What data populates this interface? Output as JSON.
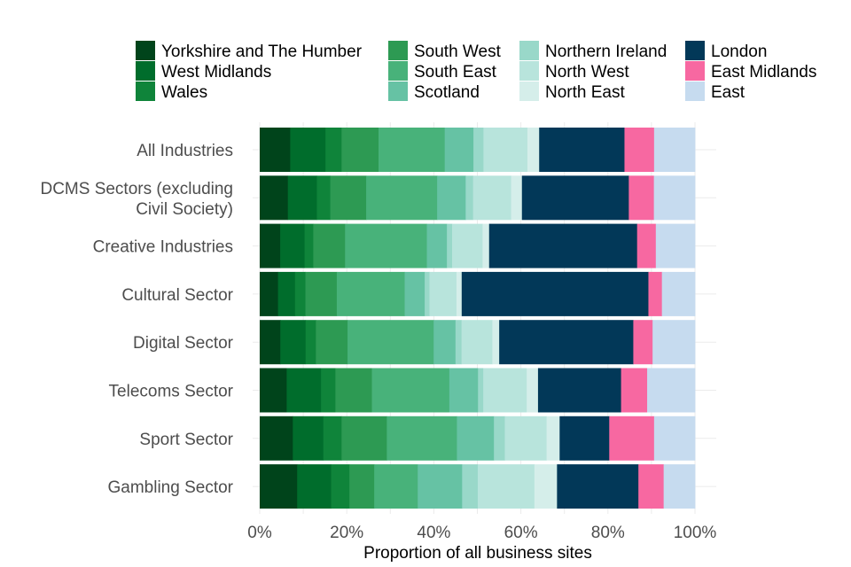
{
  "chart_data": {
    "type": "bar",
    "orientation": "horizontal",
    "stacked": true,
    "xlabel": "Proportion of all business sites",
    "xlim": [
      0,
      100
    ],
    "x_ticks": [
      "0%",
      "20%",
      "40%",
      "60%",
      "80%",
      "100%"
    ],
    "legend_position": "top",
    "categories": [
      "All Industries",
      "DCMS Sectors (excluding Civil Society)",
      "Creative Industries",
      "Cultural Sector",
      "Digital Sector",
      "Telecoms Sector",
      "Sport Sector",
      "Gambling Sector"
    ],
    "category_labels": [
      [
        "All Industries"
      ],
      [
        "DCMS Sectors (excluding",
        "Civil Society)"
      ],
      [
        "Creative Industries"
      ],
      [
        "Cultural Sector"
      ],
      [
        "Digital Sector"
      ],
      [
        "Telecoms Sector"
      ],
      [
        "Sport Sector"
      ],
      [
        "Gambling Sector"
      ]
    ],
    "series": [
      {
        "name": "Yorkshire and The Humber",
        "color": "#00441b",
        "values": [
          7.0,
          6.5,
          4.7,
          4.2,
          4.8,
          6.2,
          7.6,
          8.6
        ]
      },
      {
        "name": "West Midlands",
        "color": "#006d2c",
        "values": [
          8.1,
          6.7,
          5.6,
          3.9,
          5.9,
          7.9,
          7.0,
          7.8
        ]
      },
      {
        "name": "Wales",
        "color": "#0f843a",
        "values": [
          3.7,
          3.1,
          2.0,
          2.4,
          2.4,
          3.3,
          4.2,
          4.2
        ]
      },
      {
        "name": "South West",
        "color": "#2d9a53",
        "values": [
          8.5,
          8.3,
          7.3,
          7.2,
          7.4,
          8.4,
          10.4,
          5.7
        ]
      },
      {
        "name": "South East",
        "color": "#48b27a",
        "values": [
          15.2,
          16.4,
          18.8,
          15.6,
          20.1,
          17.8,
          16.1,
          10.0
        ]
      },
      {
        "name": "Scotland",
        "color": "#66c2a4",
        "values": [
          6.6,
          6.6,
          4.6,
          4.6,
          5.1,
          6.6,
          8.5,
          10.2
        ]
      },
      {
        "name": "Northern Ireland",
        "color": "#99d8c9",
        "values": [
          2.3,
          1.7,
          1.2,
          1.1,
          1.4,
          1.2,
          2.5,
          3.6
        ]
      },
      {
        "name": "North West",
        "color": "#b8e4dc",
        "values": [
          10.1,
          8.8,
          7.0,
          6.2,
          7.2,
          10.0,
          9.6,
          13.0
        ]
      },
      {
        "name": "North East",
        "color": "#d5eeea",
        "values": [
          2.7,
          2.5,
          1.5,
          1.2,
          1.6,
          2.6,
          3.0,
          5.2
        ]
      },
      {
        "name": "London",
        "color": "#023858",
        "values": [
          19.6,
          24.7,
          34.0,
          42.9,
          31.3,
          19.1,
          11.4,
          18.7
        ]
      },
      {
        "name": "East Midlands",
        "color": "#f768a1",
        "values": [
          6.8,
          5.8,
          4.3,
          3.1,
          4.5,
          6.0,
          10.3,
          5.8
        ]
      },
      {
        "name": "East",
        "color": "#c6dbef",
        "values": [
          9.4,
          9.5,
          9.0,
          7.6,
          9.9,
          11.0,
          9.4,
          7.2
        ]
      }
    ]
  }
}
